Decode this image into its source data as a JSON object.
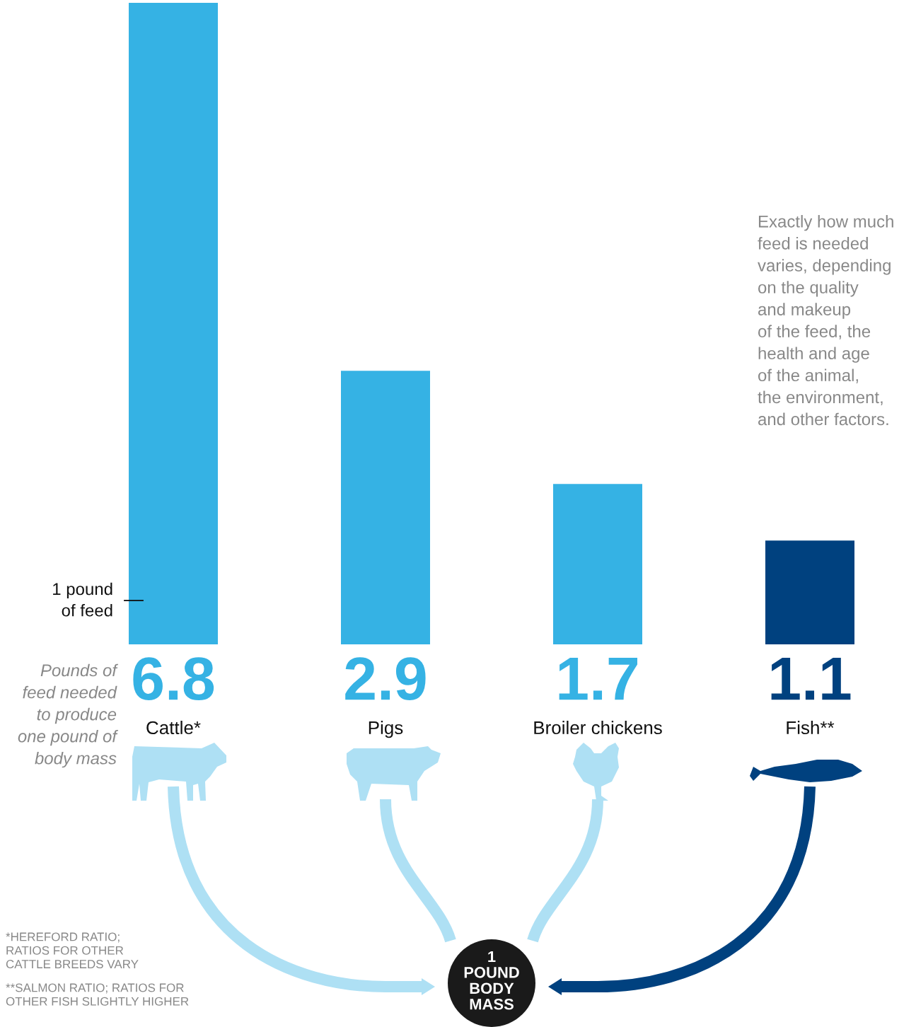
{
  "chart_data": {
    "type": "bar",
    "categories": [
      "Cattle*",
      "Pigs",
      "Broiler chickens",
      "Fish**"
    ],
    "values": [
      6.8,
      2.9,
      1.7,
      1.1
    ],
    "colors": [
      "#35b2e4",
      "#35b2e4",
      "#35b2e4",
      "#00417f"
    ],
    "data_labels": true,
    "tick_labels": "x",
    "annotations": [
      "1 pound\nof feed",
      "Pounds of\nfeed needed\nto produce\none pound of\nbody mass",
      "Exactly how much\nfeed is needed\nvaries, depending\non the quality\nand makeup\nof the feed, the\nhealth and age\nof the animal,\nthe environment,\nand other factors.",
      "1\nPOUND\nBODY\nMASS",
      "*HEREFORD RATIO;\nRATIOS FOR OTHER\nCATTLE BREEDS VARY",
      "**SALMON RATIO; RATIOS FOR\nOTHER FISH SLIGHTLY HIGHER"
    ]
  }
}
